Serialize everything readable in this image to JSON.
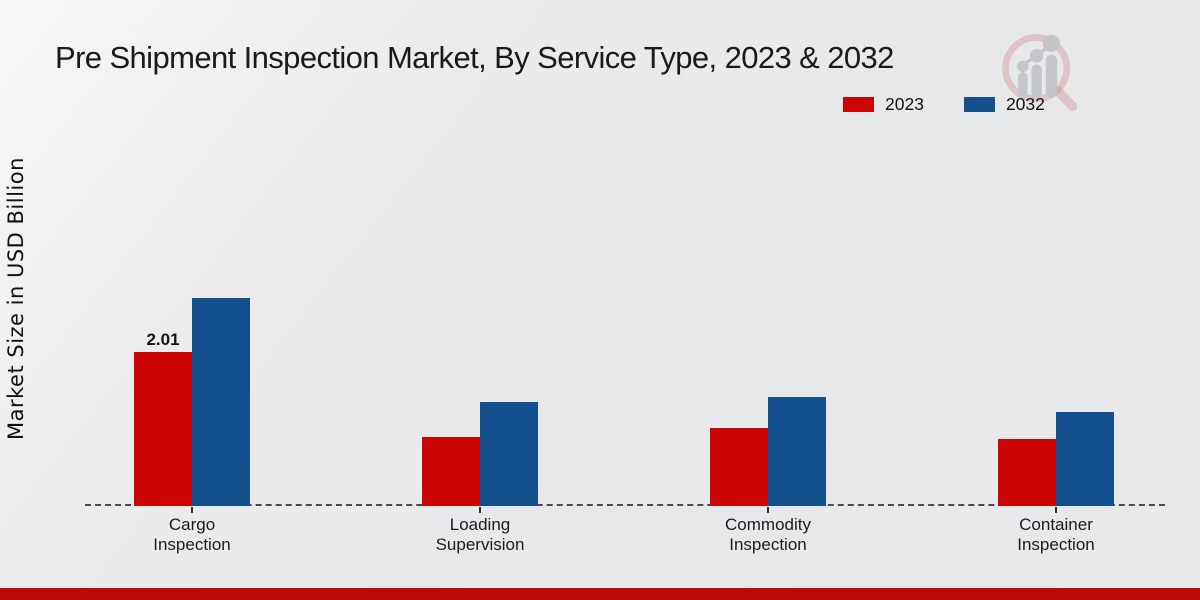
{
  "title": "Pre Shipment Inspection Market, By Service Type, 2023 & 2032",
  "y_axis_label": "Market Size in USD Billion",
  "legend": [
    {
      "label": "2023",
      "color": "#cb0404"
    },
    {
      "label": "2032",
      "color": "#15508e"
    }
  ],
  "colors": {
    "bar_2023": "#cb0404",
    "bar_2032": "#15508e",
    "bottom_strip": "#bf0a0a",
    "axis_line": "#4a4a4a",
    "text": "#1a1a1a"
  },
  "icons": {
    "watermark": "magnifier-bar-chart-logo"
  },
  "chart_data": {
    "type": "bar",
    "title": "Pre Shipment Inspection Market, By Service Type, 2023 & 2032",
    "xlabel": "",
    "ylabel": "Market Size in USD Billion",
    "categories": [
      "Cargo\nInspection",
      "Loading\nSupervision",
      "Commodity\nInspection",
      "Container\nInspection"
    ],
    "series": [
      {
        "name": "2023",
        "color": "#cb0404",
        "values": [
          2.01,
          0.9,
          1.02,
          0.88
        ],
        "value_labels": [
          "2.01",
          "",
          "",
          ""
        ]
      },
      {
        "name": "2032",
        "color": "#15508e",
        "values": [
          2.72,
          1.36,
          1.42,
          1.23
        ],
        "value_labels": [
          "",
          "",
          "",
          ""
        ]
      }
    ],
    "ylim": [
      0,
      3.0
    ],
    "grid": false,
    "legend_position": "top-right",
    "baseline_style": "dashed"
  }
}
